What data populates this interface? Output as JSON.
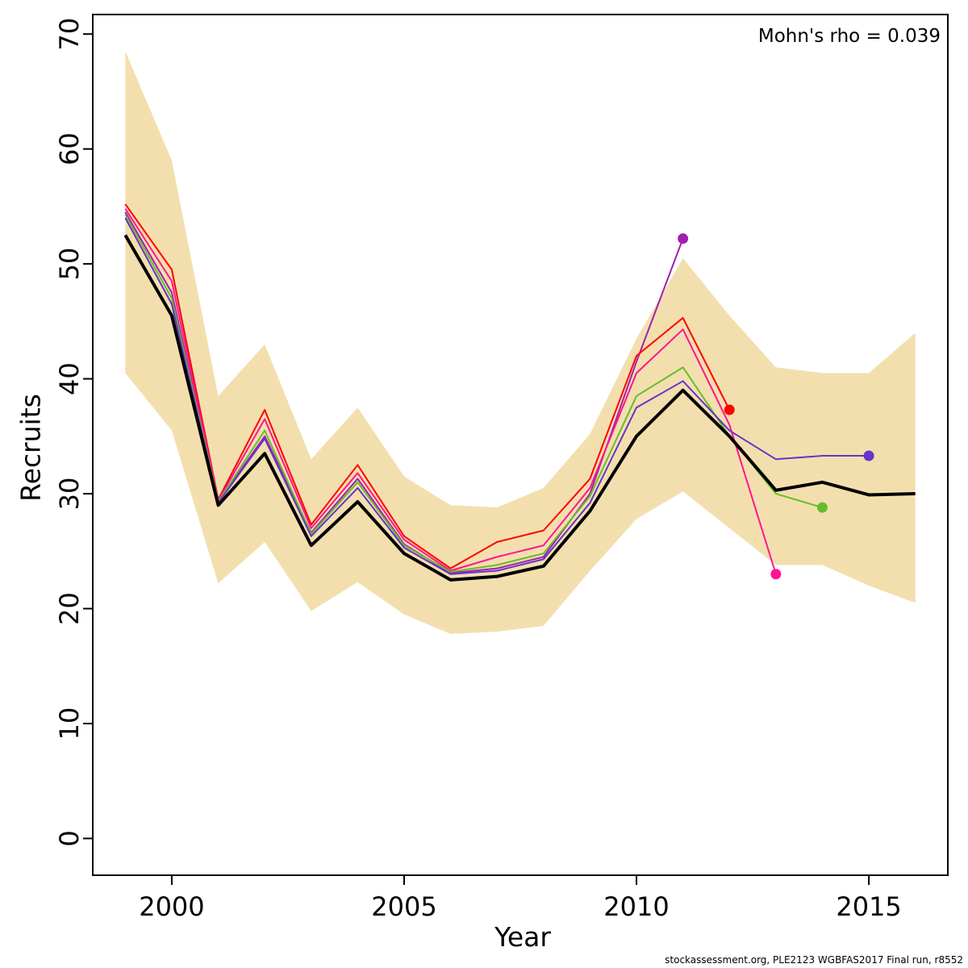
{
  "annotation": {
    "mohns_rho": "Mohn's rho = 0.039"
  },
  "footer": {
    "source_text": "stockassessment.org, PLE2123 WGBFAS2017 Final run, r8552"
  },
  "chart_data": {
    "type": "line",
    "title": "",
    "xlabel": "Year",
    "ylabel": "Recruits",
    "x_ticks": [
      2000,
      2005,
      2010,
      2015
    ],
    "y_ticks": [
      0,
      10,
      20,
      30,
      40,
      50,
      60,
      70
    ],
    "xlim": [
      1998.3,
      2016.7
    ],
    "ylim": [
      -3.2,
      71.7
    ],
    "grid": false,
    "legend": "none",
    "years": [
      1999,
      2000,
      2001,
      2002,
      2003,
      2004,
      2005,
      2006,
      2007,
      2008,
      2009,
      2010,
      2011,
      2012,
      2013,
      2014,
      2015,
      2016
    ],
    "band": {
      "name": "confidence-band",
      "color": "#F3DFAE",
      "lower": [
        40.5,
        35.5,
        22.2,
        25.8,
        19.8,
        22.3,
        19.5,
        17.8,
        18.0,
        18.5,
        23.3,
        27.8,
        30.2,
        27.0,
        23.8,
        23.8,
        22.0,
        20.5
      ],
      "upper": [
        68.5,
        59.0,
        38.5,
        43.0,
        33.0,
        37.5,
        31.5,
        29.0,
        28.8,
        30.5,
        35.2,
        43.5,
        50.5,
        45.5,
        41.0,
        40.5,
        40.5,
        44.0
      ]
    },
    "final_run": {
      "name": "final-run",
      "color": "#000000",
      "values": [
        52.5,
        45.5,
        29.0,
        33.5,
        25.5,
        29.3,
        24.8,
        22.5,
        22.8,
        23.7,
        28.5,
        35.0,
        39.0,
        35.0,
        30.3,
        31.0,
        29.9,
        30.0
      ]
    },
    "retro_peels": [
      {
        "name": "peel-2011",
        "terminal_year": 2011,
        "color": "#A020B0",
        "years": [
          1999,
          2000,
          2001,
          2002,
          2003,
          2004,
          2005,
          2006,
          2007,
          2008,
          2009,
          2010,
          2011
        ],
        "values": [
          54.5,
          47.5,
          29.3,
          35.0,
          26.6,
          31.3,
          25.6,
          23.1,
          23.5,
          24.5,
          30.0,
          41.5,
          52.2
        ]
      },
      {
        "name": "peel-2012",
        "terminal_year": 2012,
        "color": "#FF0000",
        "years": [
          1999,
          2000,
          2001,
          2002,
          2003,
          2004,
          2005,
          2006,
          2007,
          2008,
          2009,
          2010,
          2011,
          2012
        ],
        "values": [
          55.2,
          49.5,
          29.5,
          37.3,
          27.3,
          32.5,
          26.3,
          23.5,
          25.8,
          26.8,
          31.3,
          42.0,
          45.3,
          37.3
        ]
      },
      {
        "name": "peel-2013",
        "terminal_year": 2013,
        "color": "#FF1493",
        "years": [
          1999,
          2000,
          2001,
          2002,
          2003,
          2004,
          2005,
          2006,
          2007,
          2008,
          2009,
          2010,
          2011,
          2012,
          2013
        ],
        "values": [
          54.8,
          48.5,
          29.4,
          36.5,
          27.0,
          31.8,
          26.0,
          23.3,
          24.5,
          25.5,
          30.5,
          40.5,
          44.3,
          36.0,
          23.0
        ]
      },
      {
        "name": "peel-2014",
        "terminal_year": 2014,
        "color": "#66BD2B",
        "years": [
          1999,
          2000,
          2001,
          2002,
          2003,
          2004,
          2005,
          2006,
          2007,
          2008,
          2009,
          2010,
          2011,
          2012,
          2013,
          2014
        ],
        "values": [
          54.3,
          47.0,
          29.3,
          35.5,
          26.5,
          31.0,
          25.5,
          23.2,
          23.8,
          24.8,
          29.8,
          38.5,
          41.0,
          35.0,
          30.0,
          28.8
        ]
      },
      {
        "name": "peel-2015",
        "terminal_year": 2015,
        "color": "#6633CC",
        "years": [
          1999,
          2000,
          2001,
          2002,
          2003,
          2004,
          2005,
          2006,
          2007,
          2008,
          2009,
          2010,
          2011,
          2012,
          2013,
          2014,
          2015
        ],
        "values": [
          54.0,
          46.5,
          29.2,
          34.8,
          26.3,
          30.5,
          25.3,
          23.0,
          23.3,
          24.3,
          29.2,
          37.5,
          39.8,
          35.5,
          33.0,
          33.3,
          33.3
        ]
      }
    ],
    "annotation": "Mohn's rho = 0.039"
  }
}
